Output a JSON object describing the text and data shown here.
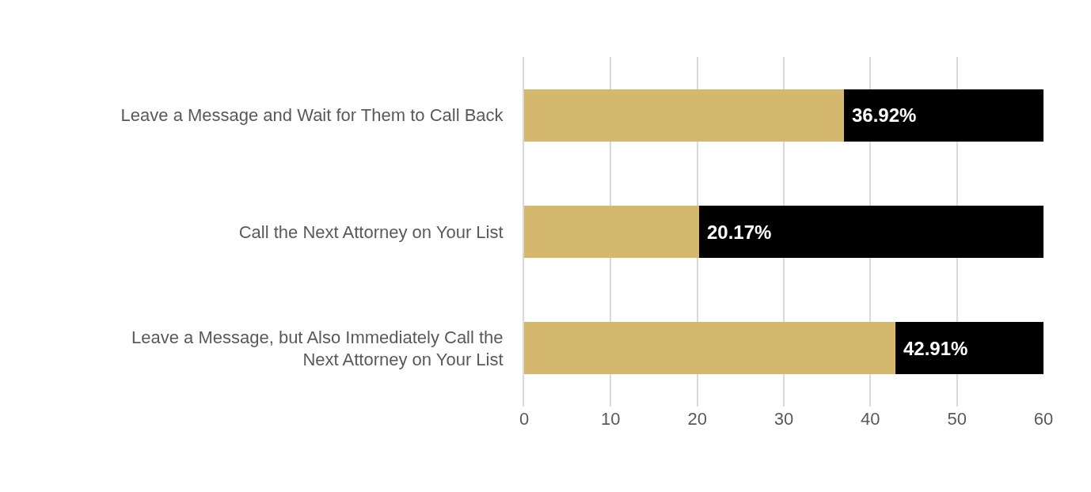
{
  "chart_data": {
    "type": "bar",
    "orientation": "horizontal",
    "stacked": true,
    "categories": [
      "Leave a Message and Wait for Them to Call Back",
      "Call the Next Attorney on Your List",
      "Leave a Message, but Also Immediately Call the\nNext Attorney on Your List"
    ],
    "series": [
      {
        "color": "#d4b86e",
        "values": [
          36.92,
          20.17,
          42.91
        ],
        "value_labels": [
          "36.92%",
          "20.17%",
          "42.91%"
        ]
      },
      {
        "color": "#000000",
        "values": [
          23.08,
          39.83,
          17.09
        ]
      }
    ],
    "xlim": [
      0,
      60
    ],
    "xticks": [
      0,
      10,
      20,
      30,
      40,
      50,
      60
    ],
    "grid": "x"
  }
}
